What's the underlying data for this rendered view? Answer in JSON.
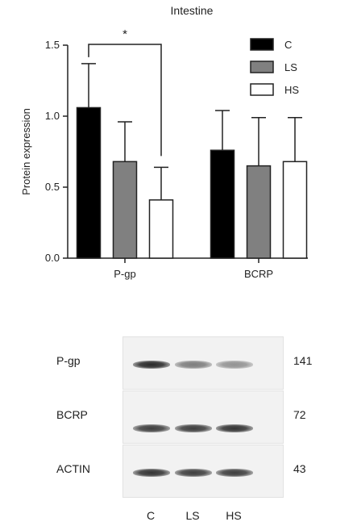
{
  "chart_data": {
    "type": "bar",
    "title": "Intestine",
    "ylabel": "Protein expression",
    "xlabel": "",
    "ylim": [
      0,
      1.5
    ],
    "yticks": [
      0.0,
      0.5,
      1.0,
      1.5
    ],
    "categories": [
      "P-gp",
      "BCRP"
    ],
    "series": [
      {
        "name": "C",
        "values": [
          1.06,
          0.76
        ],
        "errors": [
          0.31,
          0.28
        ],
        "color": "#000000"
      },
      {
        "name": "LS",
        "values": [
          0.68,
          0.65
        ],
        "errors": [
          0.28,
          0.34
        ],
        "color": "#808080"
      },
      {
        "name": "HS",
        "values": [
          0.41,
          0.68
        ],
        "errors": [
          0.23,
          0.31
        ],
        "color": "#ffffff"
      }
    ],
    "annotations": [
      {
        "text": "*",
        "from": {
          "category": "P-gp",
          "series": "C"
        },
        "to": {
          "category": "P-gp",
          "series": "HS"
        }
      }
    ],
    "legend_position": "top-right",
    "grid": false
  },
  "blot": {
    "rows": [
      {
        "label": "P-gp",
        "mw": "141",
        "intensities": [
          0.95,
          0.55,
          0.45
        ]
      },
      {
        "label": "BCRP",
        "mw": "72",
        "intensities": [
          0.85,
          0.85,
          0.9
        ]
      },
      {
        "label": "ACTIN",
        "mw": "43",
        "intensities": [
          0.9,
          0.85,
          0.85
        ]
      }
    ],
    "lanes": [
      "C",
      "LS",
      "HS"
    ]
  }
}
